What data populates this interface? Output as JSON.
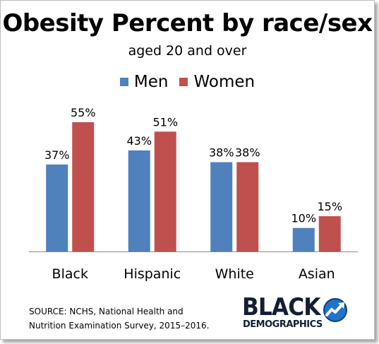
{
  "chart_data": {
    "type": "bar",
    "title": "Obesity Percent by race/sex",
    "subtitle": "aged 20 and over",
    "categories": [
      "Black",
      "Hispanic",
      "White",
      "Asian"
    ],
    "series": [
      {
        "name": "Men",
        "values": [
          37,
          43,
          38,
          10
        ],
        "labels": [
          "37%",
          "43%",
          "38%",
          "10%"
        ],
        "color": "#4f81bd"
      },
      {
        "name": "Women",
        "values": [
          55,
          51,
          38,
          15
        ],
        "labels": [
          "55%",
          "51%",
          "38%",
          "15%"
        ],
        "color": "#c0504d"
      }
    ],
    "ylim": [
      0,
      55
    ],
    "grid": false,
    "legend_position": "top-center"
  },
  "source": {
    "line1": "SOURCE: NCHS, National Health and",
    "line2": "Nutrition Examination Survey, 2015–2016."
  },
  "logo": {
    "word1": "BLACK",
    "word2": "DEMOGRAPHICS",
    "icon": "upward-trend-arrow-icon",
    "colors": {
      "text": "#121e35",
      "circle": "#1f73c8"
    }
  }
}
